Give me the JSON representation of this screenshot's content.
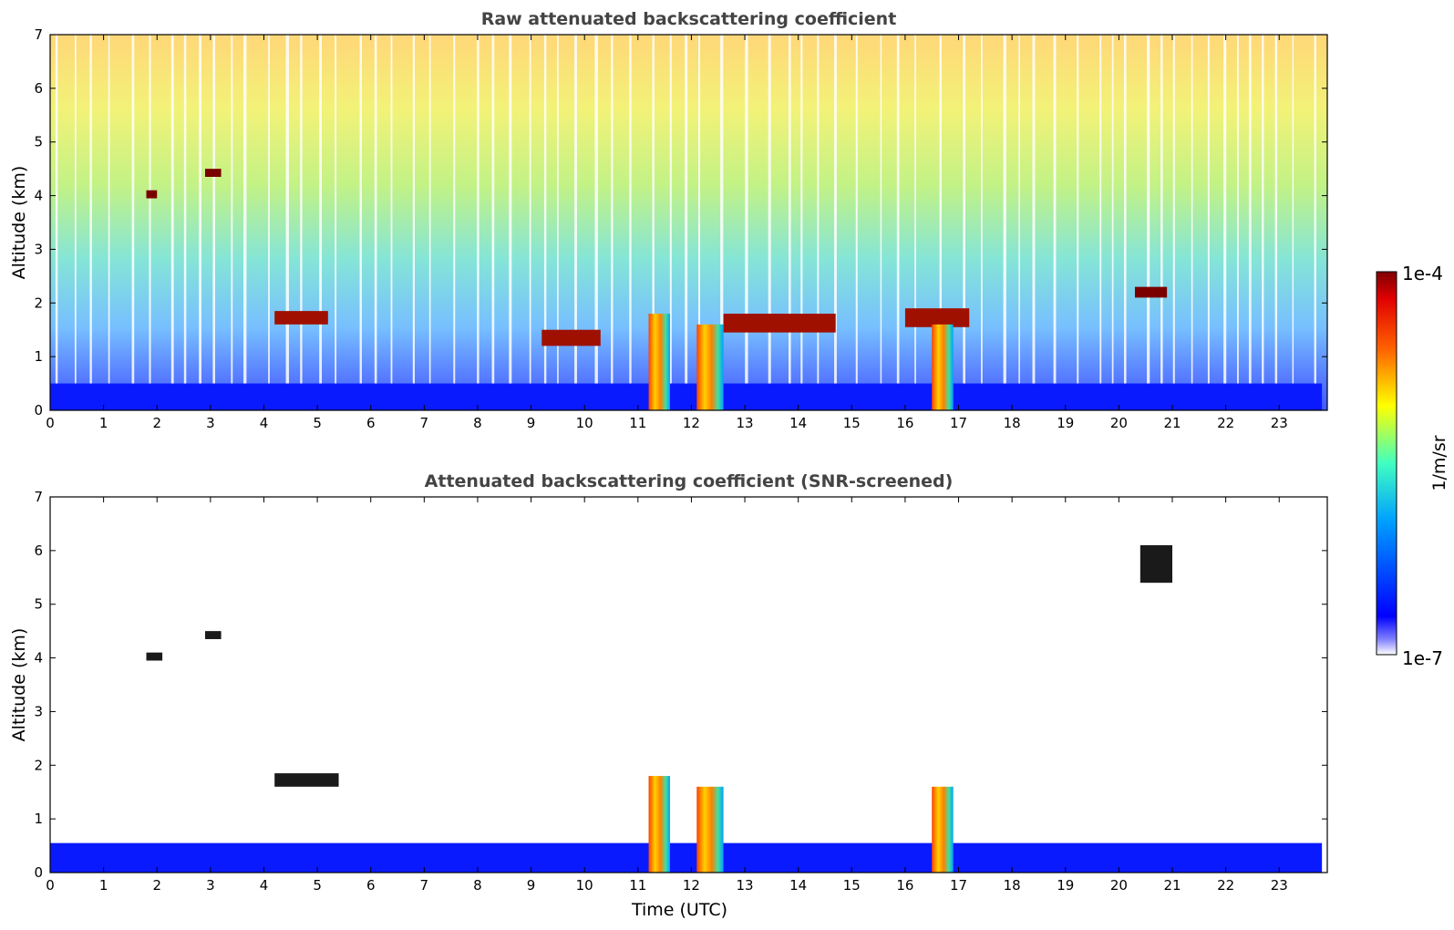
{
  "chart_data": [
    {
      "type": "heatmap",
      "title": "Raw attenuated backscattering coefficient",
      "xlabel": "",
      "ylabel": "Altitude (km)",
      "xlim": [
        0,
        23.9
      ],
      "ylim": [
        0,
        7
      ],
      "xticks": [
        "0",
        "1",
        "2",
        "3",
        "4",
        "5",
        "6",
        "7",
        "8",
        "9",
        "10",
        "11",
        "12",
        "13",
        "14",
        "15",
        "16",
        "17",
        "18",
        "19",
        "20",
        "21",
        "22",
        "23"
      ],
      "yticks": [
        "0",
        "1",
        "2",
        "3",
        "4",
        "5",
        "6",
        "7"
      ],
      "features": [
        {
          "kind": "boundary_layer",
          "start": 0,
          "end": 23.8,
          "bottom": 0,
          "top": 0.5
        },
        {
          "kind": "aerosol_layer",
          "start": 4.2,
          "end": 5.2,
          "bottom": 1.6,
          "top": 1.85
        },
        {
          "kind": "aerosol_layer",
          "start": 9.2,
          "end": 10.3,
          "bottom": 1.2,
          "top": 1.5
        },
        {
          "kind": "aerosol_layer",
          "start": 12.6,
          "end": 14.7,
          "bottom": 1.45,
          "top": 1.8
        },
        {
          "kind": "aerosol_layer",
          "start": 16.0,
          "end": 17.2,
          "bottom": 1.55,
          "top": 1.9
        },
        {
          "kind": "cloud",
          "start": 1.8,
          "end": 2.0,
          "bottom": 3.95,
          "top": 4.1
        },
        {
          "kind": "cloud",
          "start": 2.9,
          "end": 3.2,
          "bottom": 4.35,
          "top": 4.5
        },
        {
          "kind": "cloud",
          "start": 20.3,
          "end": 20.9,
          "bottom": 2.1,
          "top": 2.3
        },
        {
          "kind": "precipitation",
          "start": 11.2,
          "end": 11.6,
          "bottom": 0,
          "top": 1.8
        },
        {
          "kind": "precipitation",
          "start": 12.1,
          "end": 12.6,
          "bottom": 0,
          "top": 1.6
        },
        {
          "kind": "precipitation",
          "start": 16.5,
          "end": 16.9,
          "bottom": 0,
          "top": 1.6
        }
      ]
    },
    {
      "type": "heatmap",
      "title": "Attenuated backscattering coefficient (SNR-screened)",
      "xlabel": "Time (UTC)",
      "ylabel": "Altitude (km)",
      "xlim": [
        0,
        23.9
      ],
      "ylim": [
        0,
        7
      ],
      "xticks": [
        "0",
        "1",
        "2",
        "3",
        "4",
        "5",
        "6",
        "7",
        "8",
        "9",
        "10",
        "11",
        "12",
        "13",
        "14",
        "15",
        "16",
        "17",
        "18",
        "19",
        "20",
        "21",
        "22",
        "23"
      ],
      "yticks": [
        "0",
        "1",
        "2",
        "3",
        "4",
        "5",
        "6",
        "7"
      ],
      "features": [
        {
          "kind": "boundary_layer",
          "start": 0,
          "end": 23.8,
          "bottom": 0,
          "top": 0.55
        },
        {
          "kind": "cloud",
          "start": 1.8,
          "end": 2.1,
          "bottom": 3.95,
          "top": 4.1
        },
        {
          "kind": "cloud",
          "start": 2.9,
          "end": 3.2,
          "bottom": 4.35,
          "top": 4.5
        },
        {
          "kind": "cloud",
          "start": 4.2,
          "end": 5.4,
          "bottom": 1.6,
          "top": 1.85
        },
        {
          "kind": "cloud",
          "start": 20.4,
          "end": 21.0,
          "bottom": 5.4,
          "top": 6.1
        },
        {
          "kind": "precipitation",
          "start": 11.2,
          "end": 11.6,
          "bottom": 0,
          "top": 1.8
        },
        {
          "kind": "precipitation",
          "start": 12.1,
          "end": 12.6,
          "bottom": 0,
          "top": 1.6
        },
        {
          "kind": "precipitation",
          "start": 16.5,
          "end": 16.9,
          "bottom": 0,
          "top": 1.6
        }
      ]
    }
  ],
  "colorbar": {
    "label": "1/m/sr",
    "max_label": "1e-4",
    "min_label": "1e-7",
    "scale": "log",
    "colormap": "jet"
  },
  "colors": {
    "low": "#0000ff",
    "mid": "#7fff7f",
    "high": "#ff0000",
    "max": "#7f0000",
    "title": "#444444"
  }
}
